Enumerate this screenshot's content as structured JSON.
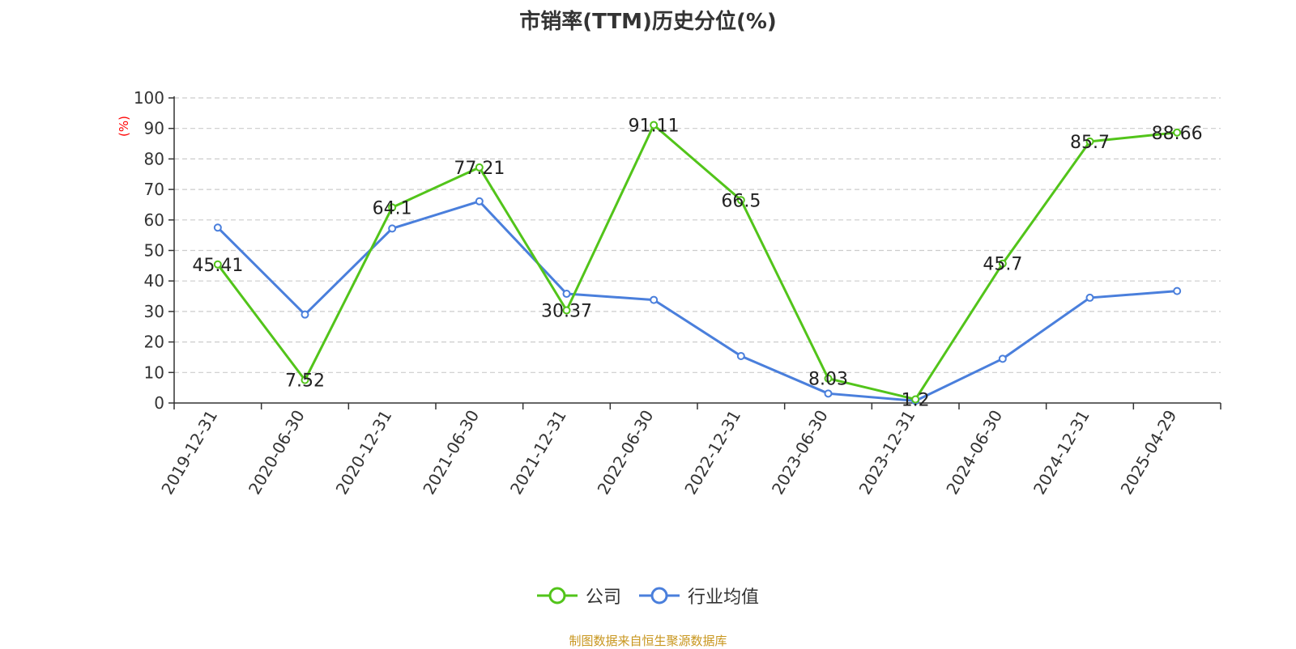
{
  "chart_data": {
    "type": "line",
    "title": "市销率(TTM)历史分位(%)",
    "ylabel": "(%)",
    "xlabel": "",
    "ylim": [
      0,
      100
    ],
    "yticks": [
      0,
      10,
      20,
      30,
      40,
      50,
      60,
      70,
      80,
      90,
      100
    ],
    "grid": true,
    "legend_position": "bottom",
    "categories": [
      "2019-12-31",
      "2020-06-30",
      "2020-12-31",
      "2021-06-30",
      "2021-12-31",
      "2022-06-30",
      "2022-12-31",
      "2023-06-30",
      "2023-12-31",
      "2024-06-30",
      "2024-12-31",
      "2025-04-29"
    ],
    "series": [
      {
        "name": "公司",
        "color": "#52c41a",
        "show_labels": true,
        "values": [
          45.41,
          7.52,
          64.1,
          77.21,
          30.37,
          91.11,
          66.5,
          8.03,
          1.2,
          45.7,
          85.7,
          88.66
        ]
      },
      {
        "name": "行业均值",
        "color": "#4a7fdc",
        "show_labels": false,
        "values": [
          57.5,
          29.0,
          57.2,
          66.1,
          35.8,
          33.8,
          15.4,
          3.1,
          0.7,
          14.5,
          34.5,
          36.7
        ]
      }
    ]
  },
  "source_note": "制图数据来自恒生聚源数据库"
}
